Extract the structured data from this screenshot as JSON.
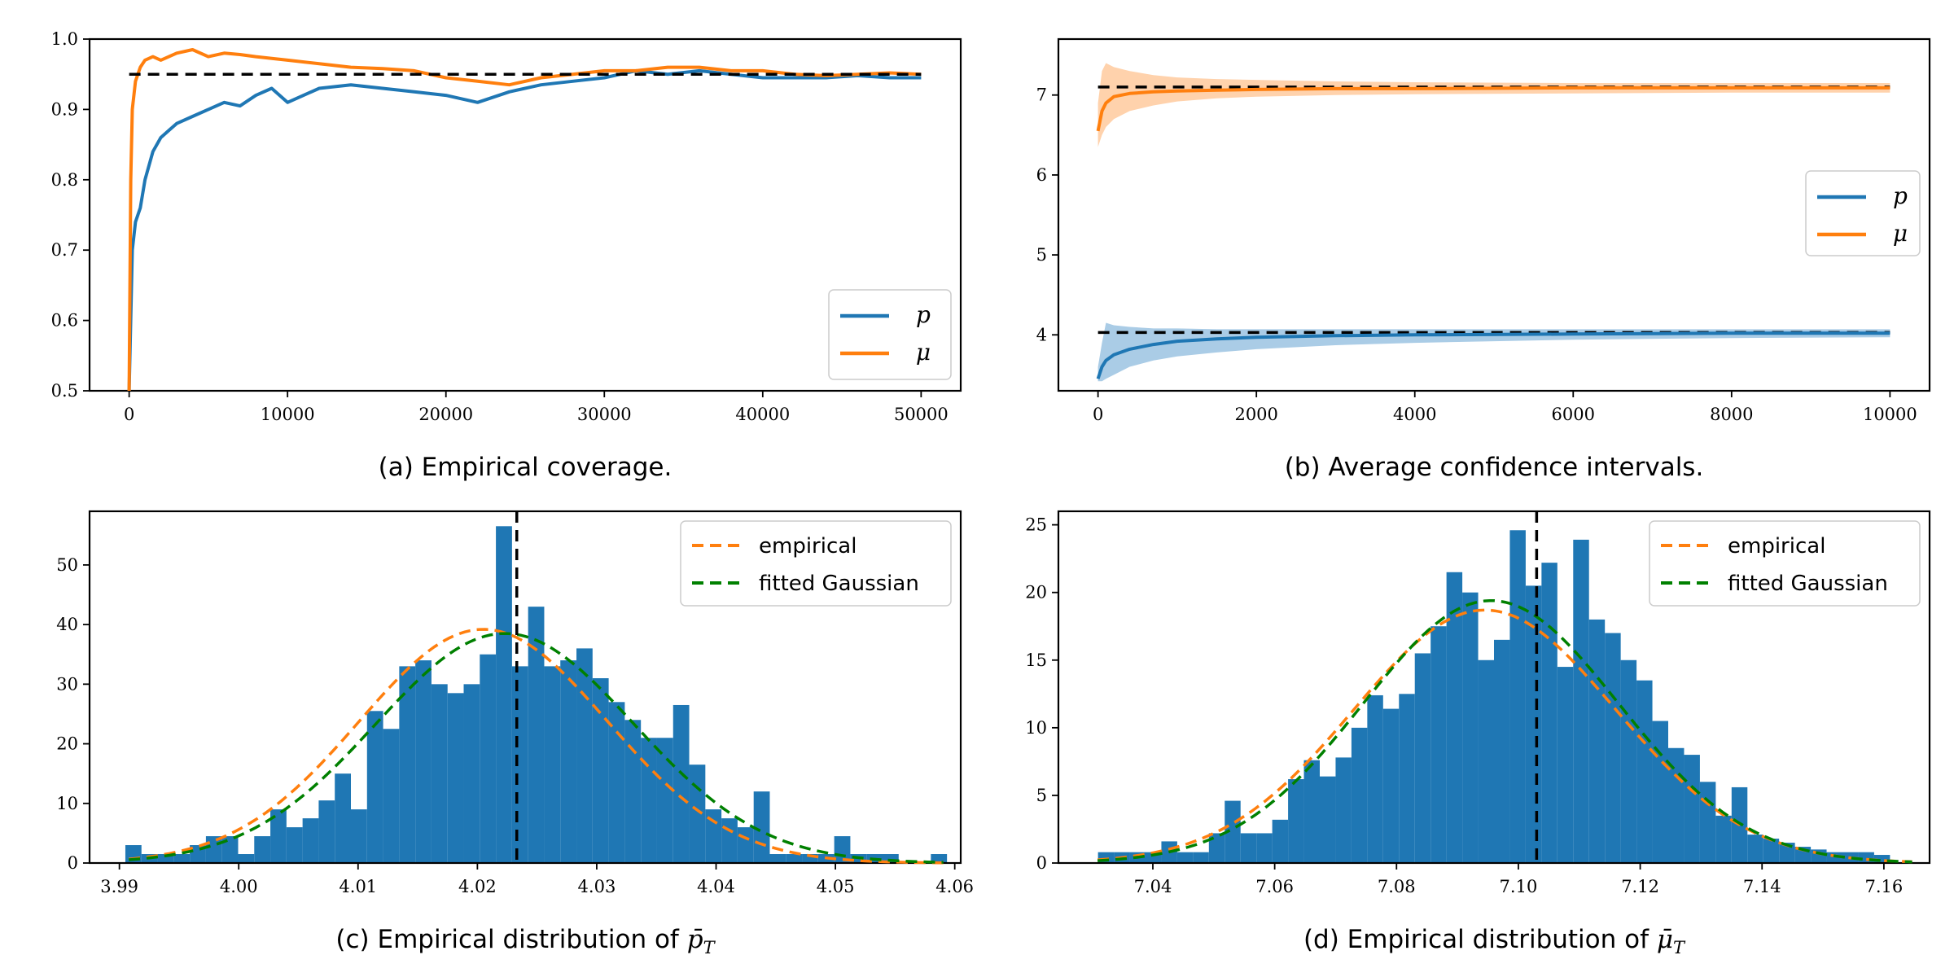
{
  "colors": {
    "blue": "#1f77b4",
    "orange": "#ff7f0e",
    "green": "#008000",
    "black": "#000000",
    "blue_fill": "#aacce6",
    "orange_fill": "#ffd2ac"
  },
  "chart_data": [
    {
      "id": "a",
      "type": "line",
      "caption": "(a) Empirical coverage.",
      "xlim": [
        -2500,
        52500
      ],
      "ylim": [
        0.5,
        1.0
      ],
      "xticks": [
        0,
        10000,
        20000,
        30000,
        40000,
        50000
      ],
      "xtick_labels": [
        "0",
        "10000",
        "20000",
        "30000",
        "40000",
        "50000"
      ],
      "yticks": [
        0.5,
        0.6,
        0.7,
        0.8,
        0.9,
        1.0
      ],
      "ytick_labels": [
        "0.5",
        "0.6",
        "0.7",
        "0.8",
        "0.9",
        "1.0"
      ],
      "legend": {
        "position": "lower-right",
        "entries": [
          "p",
          "μ"
        ]
      },
      "reference": {
        "y": 0.95,
        "x": [
          0,
          50000
        ]
      },
      "series": [
        {
          "name": "p",
          "color": "blue",
          "x": [
            0,
            200,
            400,
            700,
            1000,
            1500,
            2000,
            2500,
            3000,
            4000,
            5000,
            6000,
            7000,
            8000,
            9000,
            10000,
            12000,
            14000,
            16000,
            18000,
            20000,
            22000,
            24000,
            26000,
            28000,
            30000,
            32000,
            34000,
            36000,
            38000,
            40000,
            42000,
            44000,
            46000,
            48000,
            50000
          ],
          "values": [
            0.5,
            0.7,
            0.74,
            0.76,
            0.8,
            0.84,
            0.86,
            0.87,
            0.88,
            0.89,
            0.9,
            0.91,
            0.905,
            0.92,
            0.93,
            0.91,
            0.93,
            0.935,
            0.93,
            0.925,
            0.92,
            0.91,
            0.925,
            0.935,
            0.94,
            0.945,
            0.955,
            0.95,
            0.955,
            0.95,
            0.945,
            0.945,
            0.945,
            0.948,
            0.945,
            0.945
          ]
        },
        {
          "name": "μ",
          "color": "orange",
          "x": [
            0,
            100,
            200,
            400,
            700,
            1000,
            1500,
            2000,
            3000,
            4000,
            5000,
            6000,
            7000,
            8000,
            10000,
            12000,
            14000,
            16000,
            18000,
            20000,
            22000,
            24000,
            26000,
            28000,
            30000,
            32000,
            34000,
            36000,
            38000,
            40000,
            42000,
            44000,
            46000,
            48000,
            50000
          ],
          "values": [
            0.5,
            0.8,
            0.9,
            0.94,
            0.96,
            0.97,
            0.975,
            0.97,
            0.98,
            0.985,
            0.975,
            0.98,
            0.978,
            0.975,
            0.97,
            0.965,
            0.96,
            0.958,
            0.955,
            0.945,
            0.94,
            0.935,
            0.945,
            0.95,
            0.955,
            0.955,
            0.96,
            0.96,
            0.955,
            0.955,
            0.95,
            0.948,
            0.95,
            0.952,
            0.95
          ]
        }
      ]
    },
    {
      "id": "b",
      "type": "line",
      "caption": "(b) Average confidence intervals.",
      "xlim": [
        -500,
        10500
      ],
      "ylim": [
        3.3,
        7.7
      ],
      "xticks": [
        0,
        2000,
        4000,
        6000,
        8000,
        10000
      ],
      "xtick_labels": [
        "0",
        "2000",
        "4000",
        "6000",
        "8000",
        "10000"
      ],
      "yticks": [
        4,
        5,
        6,
        7
      ],
      "ytick_labels": [
        "4",
        "5",
        "6",
        "7"
      ],
      "legend": {
        "position": "center-right",
        "entries": [
          "p",
          "μ"
        ]
      },
      "references": [
        {
          "y": 7.1,
          "x": [
            0,
            10000
          ]
        },
        {
          "y": 4.03,
          "x": [
            0,
            10000
          ]
        }
      ],
      "series": [
        {
          "name": "p",
          "color": "blue",
          "x": [
            0,
            50,
            100,
            200,
            400,
            700,
            1000,
            1500,
            2000,
            3000,
            4000,
            6000,
            8000,
            10000
          ],
          "values": [
            3.45,
            3.6,
            3.68,
            3.75,
            3.82,
            3.88,
            3.92,
            3.95,
            3.97,
            3.99,
            4.0,
            4.01,
            4.02,
            4.02
          ],
          "band_lower": [
            3.42,
            3.42,
            3.45,
            3.5,
            3.6,
            3.68,
            3.73,
            3.78,
            3.82,
            3.87,
            3.9,
            3.94,
            3.96,
            3.97
          ],
          "band_upper": [
            3.6,
            3.9,
            4.15,
            4.12,
            4.1,
            4.08,
            4.08,
            4.07,
            4.07,
            4.07,
            4.07,
            4.07,
            4.07,
            4.07
          ]
        },
        {
          "name": "μ",
          "color": "orange",
          "x": [
            0,
            50,
            100,
            200,
            400,
            700,
            1000,
            1500,
            2000,
            3000,
            4000,
            6000,
            8000,
            10000
          ],
          "values": [
            6.55,
            6.8,
            6.9,
            6.98,
            7.02,
            7.04,
            7.05,
            7.06,
            7.07,
            7.08,
            7.08,
            7.09,
            7.09,
            7.09
          ],
          "band_lower": [
            6.35,
            6.5,
            6.6,
            6.7,
            6.8,
            6.87,
            6.92,
            6.96,
            6.98,
            7.0,
            7.01,
            7.02,
            7.03,
            7.03
          ],
          "band_upper": [
            6.9,
            7.3,
            7.4,
            7.35,
            7.3,
            7.25,
            7.22,
            7.2,
            7.19,
            7.17,
            7.16,
            7.15,
            7.15,
            7.15
          ]
        }
      ]
    },
    {
      "id": "c",
      "type": "histogram",
      "caption": "(c) Empirical distribution of p̄_T",
      "caption_text": "(c) Empirical distribution of ",
      "caption_symbol": "p̄",
      "caption_sub": "T",
      "xlim": [
        3.9875,
        4.0605
      ],
      "ylim": [
        0,
        59
      ],
      "xticks": [
        3.99,
        4.0,
        4.01,
        4.02,
        4.03,
        4.04,
        4.05,
        4.06
      ],
      "xtick_labels": [
        "3.99",
        "4.00",
        "4.01",
        "4.02",
        "4.03",
        "4.04",
        "4.05",
        "4.06"
      ],
      "yticks": [
        0,
        10,
        20,
        30,
        40,
        50
      ],
      "ytick_labels": [
        "0",
        "10",
        "20",
        "30",
        "40",
        "50"
      ],
      "legend": {
        "position": "top-right",
        "entries": [
          "empirical",
          "fitted Gaussian"
        ]
      },
      "bins": {
        "start": 3.9905,
        "width": 0.00135,
        "counts": [
          3,
          1.5,
          1.5,
          1.5,
          3,
          4.5,
          4.5,
          1.5,
          4.5,
          9,
          6,
          7.5,
          10.5,
          15,
          9,
          25.5,
          22.5,
          33,
          34,
          30,
          28.5,
          30,
          35,
          56.5,
          33,
          43,
          33,
          34,
          36,
          31,
          27,
          24,
          21,
          21,
          26.5,
          16.5,
          9,
          7.5,
          6,
          12,
          1.5,
          1.5,
          1.5,
          1.5,
          4.5,
          1.5,
          1.5,
          1.5,
          0,
          0,
          1.5
        ]
      },
      "reference_x": 4.0233,
      "empirical_curve": {
        "mean": 4.0205,
        "sd": 0.0104,
        "peak": 39.2
      },
      "gaussian_curve": {
        "mean": 4.0223,
        "sd": 0.0108,
        "peak": 38.5
      }
    },
    {
      "id": "d",
      "type": "histogram",
      "caption": "(d) Empirical distribution of μ̄_T",
      "caption_text": "(d) Empirical distribution of ",
      "caption_symbol": "μ̄",
      "caption_sub": "T",
      "xlim": [
        7.0245,
        7.1675
      ],
      "ylim": [
        0,
        26
      ],
      "xticks": [
        7.04,
        7.06,
        7.08,
        7.1,
        7.12,
        7.14,
        7.16
      ],
      "xtick_labels": [
        "7.04",
        "7.06",
        "7.08",
        "7.10",
        "7.12",
        "7.14",
        "7.16"
      ],
      "yticks": [
        0,
        5,
        10,
        15,
        20,
        25
      ],
      "ytick_labels": [
        "0",
        "5",
        "10",
        "15",
        "20",
        "25"
      ],
      "legend": {
        "position": "top-right",
        "entries": [
          "empirical",
          "fitted Gaussian"
        ]
      },
      "bins": {
        "start": 7.031,
        "width": 0.0026,
        "counts": [
          0.8,
          0.8,
          0.8,
          0.8,
          1.6,
          0.8,
          0.8,
          2.2,
          4.6,
          2.2,
          2.2,
          3.2,
          6.2,
          7.6,
          6.4,
          7.8,
          10,
          12.4,
          11.4,
          12.5,
          15.5,
          17.5,
          21.5,
          20,
          15,
          16.5,
          24.6,
          20.5,
          22.2,
          14.5,
          23.9,
          18,
          17,
          15,
          13.5,
          10.5,
          8.5,
          8,
          6,
          3.5,
          5.6,
          2.1,
          1.8,
          1.5,
          1.2,
          1,
          0.8,
          0.8,
          0.8,
          0.6
        ]
      },
      "reference_x": 7.103,
      "empirical_curve": {
        "mean": 7.0945,
        "sd": 0.0215,
        "peak": 18.7
      },
      "gaussian_curve": {
        "mean": 7.0955,
        "sd": 0.021,
        "peak": 19.4
      }
    }
  ]
}
